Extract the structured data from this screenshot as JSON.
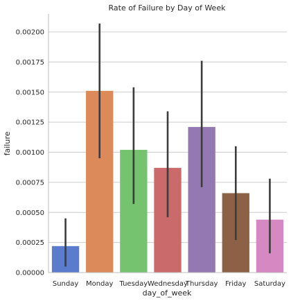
{
  "chart_data": {
    "type": "bar",
    "title": "Rate of Failure by Day of Week",
    "xlabel": "day_of_week",
    "ylabel": "failure",
    "categories": [
      "Sunday",
      "Monday",
      "Tuesday",
      "Wednesday",
      "Thursday",
      "Friday",
      "Saturday"
    ],
    "values": [
      0.00022,
      0.00151,
      0.00102,
      0.00087,
      0.00121,
      0.00066,
      0.00044
    ],
    "error_low": [
      5e-05,
      0.00095,
      0.00057,
      0.00046,
      0.00071,
      0.00027,
      0.00016
    ],
    "error_high": [
      0.00045,
      0.00207,
      0.00154,
      0.00134,
      0.00176,
      0.00105,
      0.00078
    ],
    "colors": [
      "#5b7bcc",
      "#dd8a5a",
      "#76c36f",
      "#cb6a6a",
      "#9378b1",
      "#8c6145",
      "#d688c2"
    ],
    "error_color": "#3c3c3c",
    "ylim": [
      0,
      0.00215
    ],
    "yticks": [
      0,
      0.00025,
      0.0005,
      0.00075,
      0.001,
      0.00125,
      0.0015,
      0.00175,
      0.002
    ],
    "ytick_labels": [
      "0.00000",
      "0.00025",
      "0.00050",
      "0.00075",
      "0.00100",
      "0.00125",
      "0.00150",
      "0.00175",
      "0.00200"
    ],
    "grid": "horizontal",
    "legend": "none"
  }
}
